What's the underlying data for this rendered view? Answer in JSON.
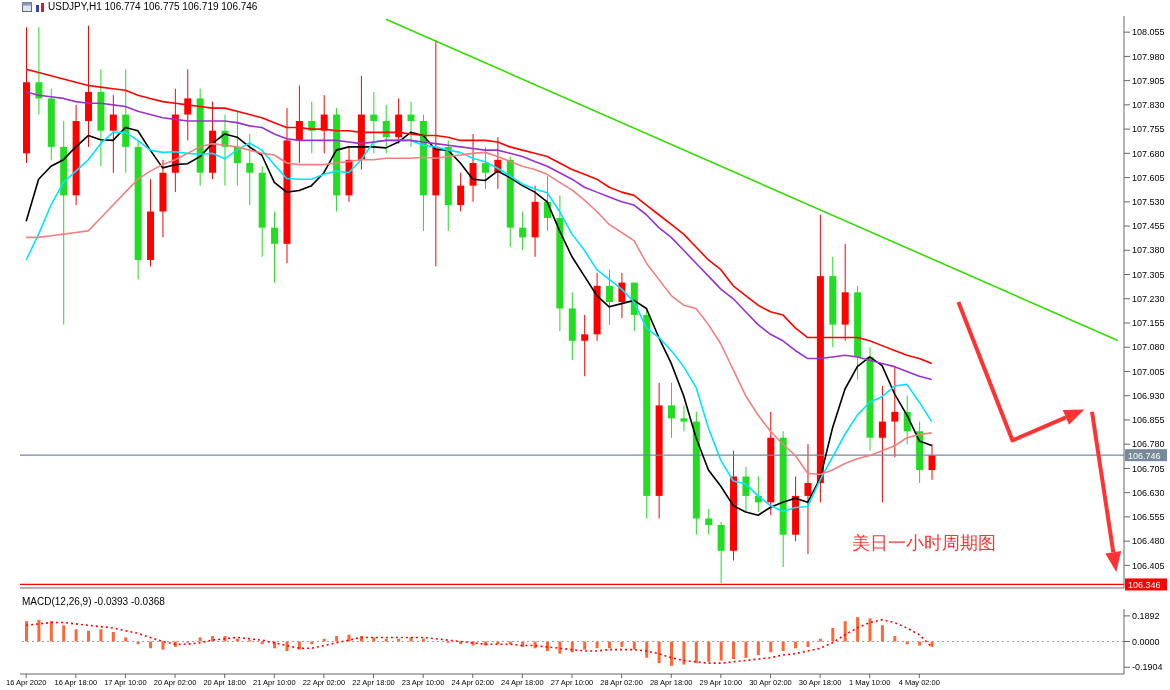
{
  "chart_data": [
    {
      "type": "candlestick",
      "title": "USDJPY,H1 106.774 106.775 106.719 106.746",
      "categories": [
        null,
        null,
        null,
        null,
        null,
        null,
        null,
        null,
        null,
        null,
        null,
        null,
        null,
        null,
        null,
        null,
        null,
        null,
        null,
        null,
        null,
        null,
        null,
        null,
        null,
        null,
        null,
        null,
        null,
        null,
        null,
        null,
        null,
        null,
        null,
        null,
        null,
        null,
        null,
        null,
        null,
        null,
        null,
        null,
        null,
        null,
        null,
        null,
        null,
        null,
        null,
        null,
        null,
        null,
        null,
        null,
        null,
        null,
        null,
        null,
        null,
        null,
        null,
        null,
        null,
        null,
        null,
        null,
        null,
        null,
        null,
        null,
        null,
        null,
        null,
        null,
        null,
        null,
        null,
        null,
        null,
        null,
        null,
        null,
        null,
        null,
        null,
        null,
        null
      ],
      "ohlc": [
        [
          107.68,
          108.07,
          107.65,
          107.9
        ],
        [
          107.9,
          108.07,
          107.8,
          107.85
        ],
        [
          107.85,
          107.88,
          107.66,
          107.7
        ],
        [
          107.7,
          107.78,
          107.15,
          107.55
        ],
        [
          107.55,
          107.83,
          107.52,
          107.78
        ],
        [
          107.78,
          108.075,
          107.7,
          107.87
        ],
        [
          107.87,
          107.94,
          107.64,
          107.75
        ],
        [
          107.75,
          107.86,
          107.62,
          107.8
        ],
        [
          107.8,
          107.94,
          107.62,
          107.7
        ],
        [
          107.7,
          107.72,
          107.29,
          107.35
        ],
        [
          107.35,
          107.6,
          107.33,
          107.5
        ],
        [
          107.5,
          107.66,
          107.42,
          107.62
        ],
        [
          107.62,
          107.88,
          107.56,
          107.8
        ],
        [
          107.8,
          107.94,
          107.72,
          107.85
        ],
        [
          107.85,
          107.88,
          107.58,
          107.62
        ],
        [
          107.62,
          107.84,
          107.6,
          107.75
        ],
        [
          107.75,
          107.8,
          107.58,
          107.7
        ],
        [
          107.7,
          107.81,
          107.58,
          107.65
        ],
        [
          107.65,
          107.74,
          107.52,
          107.62
        ],
        [
          107.62,
          107.64,
          107.36,
          107.45
        ],
        [
          107.45,
          107.5,
          107.28,
          107.4
        ],
        [
          107.4,
          107.82,
          107.34,
          107.72
        ],
        [
          107.72,
          107.89,
          107.65,
          107.78
        ],
        [
          107.78,
          107.84,
          107.68,
          107.75
        ],
        [
          107.75,
          107.86,
          107.68,
          107.8
        ],
        [
          107.8,
          107.82,
          107.5,
          107.55
        ],
        [
          107.55,
          107.7,
          107.53,
          107.66
        ],
        [
          107.66,
          107.92,
          107.63,
          107.8
        ],
        [
          107.8,
          107.87,
          107.68,
          107.78
        ],
        [
          107.78,
          107.83,
          107.68,
          107.73
        ],
        [
          107.73,
          107.85,
          107.71,
          107.8
        ],
        [
          107.8,
          107.84,
          107.7,
          107.78
        ],
        [
          107.78,
          107.8,
          107.44,
          107.55
        ],
        [
          107.55,
          108.03,
          107.33,
          107.7
        ],
        [
          107.7,
          107.72,
          107.44,
          107.52
        ],
        [
          107.52,
          107.62,
          107.5,
          107.58
        ],
        [
          107.58,
          107.74,
          107.53,
          107.65
        ],
        [
          107.65,
          107.7,
          107.57,
          107.62
        ],
        [
          107.62,
          107.73,
          107.57,
          107.66
        ],
        [
          107.66,
          107.67,
          107.39,
          107.45
        ],
        [
          107.45,
          107.5,
          107.38,
          107.42
        ],
        [
          107.42,
          107.58,
          107.36,
          107.53
        ],
        [
          107.53,
          107.61,
          107.44,
          107.48
        ],
        [
          107.48,
          107.55,
          107.13,
          107.2
        ],
        [
          107.2,
          107.25,
          107.04,
          107.1
        ],
        [
          107.1,
          107.18,
          106.99,
          107.12
        ],
        [
          107.12,
          107.31,
          107.1,
          107.27
        ],
        [
          107.27,
          107.32,
          107.15,
          107.22
        ],
        [
          107.22,
          107.31,
          107.17,
          107.28
        ],
        [
          107.28,
          107.28,
          107.13,
          107.18
        ],
        [
          107.18,
          107.2,
          106.55,
          106.62
        ],
        [
          106.62,
          106.97,
          106.55,
          106.9
        ],
        [
          106.9,
          106.97,
          106.8,
          106.86
        ],
        [
          106.86,
          106.9,
          106.82,
          106.85
        ],
        [
          106.85,
          106.88,
          106.5,
          106.55
        ],
        [
          106.55,
          106.58,
          106.5,
          106.53
        ],
        [
          106.53,
          106.54,
          106.35,
          106.45
        ],
        [
          106.45,
          106.76,
          106.42,
          106.68
        ],
        [
          106.68,
          106.71,
          106.57,
          106.62
        ],
        [
          106.62,
          106.68,
          106.57,
          106.6
        ],
        [
          106.6,
          106.88,
          106.56,
          106.8
        ],
        [
          106.8,
          106.82,
          106.4,
          106.5
        ],
        [
          106.5,
          106.68,
          106.48,
          106.62
        ],
        [
          106.62,
          106.78,
          106.44,
          106.66
        ],
        [
          106.66,
          107.49,
          106.6,
          107.3
        ],
        [
          107.3,
          107.36,
          107.08,
          107.15
        ],
        [
          107.15,
          107.4,
          107.1,
          107.25
        ],
        [
          107.25,
          107.27,
          106.98,
          107.05
        ],
        [
          107.05,
          107.08,
          106.76,
          106.8
        ],
        [
          106.8,
          106.96,
          106.6,
          106.85
        ],
        [
          106.85,
          107.02,
          106.74,
          106.88
        ],
        [
          106.88,
          106.93,
          106.78,
          106.82
        ],
        [
          106.82,
          106.85,
          106.66,
          106.7
        ],
        [
          106.7,
          106.78,
          106.67,
          106.746
        ],
        null,
        null,
        null,
        null,
        null,
        null,
        null,
        null,
        null,
        null,
        null,
        null,
        null,
        null,
        null
      ],
      "colors": [
        "#ff0000",
        "#22dd22",
        "#22dd22",
        "#22dd22",
        "#ff0000",
        "#ff0000",
        "#22dd22",
        "#ff0000",
        "#22dd22",
        "#22dd22",
        "#ff0000",
        "#ff0000",
        "#ff0000",
        "#ff0000",
        "#22dd22",
        "#ff0000",
        "#22dd22",
        "#22dd22",
        "#22dd22",
        "#22dd22",
        "#22dd22",
        "#ff0000",
        "#ff0000",
        "#22dd22",
        "#ff0000",
        "#22dd22",
        "#ff0000",
        "#ff0000",
        "#22dd22",
        "#22dd22",
        "#ff0000",
        "#22dd22",
        "#22dd22",
        "#ff0000",
        "#22dd22",
        "#ff0000",
        "#ff0000",
        "#22dd22",
        "#ff0000",
        "#22dd22",
        "#22dd22",
        "#ff0000",
        "#22dd22",
        "#22dd22",
        "#22dd22",
        "#ff0000",
        "#ff0000",
        "#22dd22",
        "#ff0000",
        "#22dd22",
        "#22dd22",
        "#ff0000",
        "#22dd22",
        "#22dd22",
        "#22dd22",
        "#22dd22",
        "#22dd22",
        "#ff0000",
        "#22dd22",
        "#22dd22",
        "#ff0000",
        "#22dd22",
        "#ff0000",
        "#ff0000",
        "#ff0000",
        "#22dd22",
        "#ff0000",
        "#22dd22",
        "#22dd22",
        "#ff0000",
        "#ff0000",
        "#22dd22",
        "#22dd22",
        "#ff0000",
        null,
        null,
        null,
        null,
        null,
        null,
        null,
        null,
        null,
        null,
        null,
        null,
        null,
        null,
        null
      ],
      "series": [
        {
          "type": "line",
          "color": "#000000",
          "values": [
            107.47,
            107.6,
            107.64,
            107.66,
            107.7,
            107.735,
            107.722,
            107.72,
            107.76,
            107.75,
            107.69,
            107.635,
            107.645,
            107.648,
            107.67,
            107.71,
            107.74,
            107.73,
            107.7,
            107.674,
            107.59,
            107.56,
            107.565,
            107.58,
            107.62,
            107.69,
            107.7,
            107.7,
            107.7,
            107.697,
            107.715,
            107.745,
            107.735,
            107.692,
            107.69,
            107.65,
            107.6,
            107.596,
            107.625,
            107.605,
            107.58,
            107.56,
            107.53,
            107.44,
            107.36,
            107.3,
            107.24,
            107.205,
            107.215,
            107.225,
            107.2,
            107.11,
            107.03,
            106.93,
            106.8,
            106.7,
            106.65,
            106.59,
            106.57,
            106.56,
            106.585,
            106.6,
            106.613,
            106.6,
            106.674,
            106.83,
            106.95,
            107.02,
            107.05,
            107.023,
            106.936,
            106.87,
            106.79,
            106.776,
            null,
            null,
            null,
            null,
            null,
            null,
            null,
            null,
            null,
            null,
            null,
            null,
            null,
            null,
            null
          ]
        },
        {
          "type": "line",
          "color": "#00e5ff",
          "values": [
            107.35,
            107.43,
            107.52,
            107.59,
            107.625,
            107.66,
            107.71,
            107.745,
            107.745,
            107.72,
            107.69,
            107.683,
            107.685,
            107.68,
            107.677,
            107.68,
            107.663,
            107.69,
            107.712,
            107.69,
            107.645,
            107.602,
            107.6,
            107.6,
            107.615,
            107.625,
            107.62,
            107.66,
            107.715,
            107.72,
            107.72,
            107.72,
            107.705,
            107.7,
            107.69,
            107.683,
            107.665,
            107.654,
            107.634,
            107.61,
            107.585,
            107.57,
            107.558,
            107.5,
            107.43,
            107.38,
            107.32,
            107.29,
            107.26,
            107.22,
            107.14,
            107.11,
            107.07,
            107.02,
            106.956,
            106.83,
            106.73,
            106.666,
            106.657,
            106.62,
            106.59,
            106.572,
            106.584,
            106.587,
            106.67,
            106.74,
            106.81,
            106.87,
            106.91,
            106.927,
            106.96,
            106.965,
            106.91,
            106.85,
            null,
            null,
            null,
            null,
            null,
            null,
            null,
            null,
            null,
            null,
            null,
            null,
            null,
            null,
            null
          ]
        },
        {
          "type": "line",
          "color": "#f08080",
          "values": [
            107.42,
            107.42,
            107.425,
            107.43,
            107.435,
            107.44,
            107.48,
            107.52,
            107.56,
            107.6,
            107.625,
            107.645,
            107.66,
            107.68,
            107.7,
            107.71,
            107.705,
            107.7,
            107.69,
            107.68,
            107.675,
            107.65,
            107.645,
            107.645,
            107.645,
            107.65,
            107.655,
            107.66,
            107.66,
            107.665,
            107.665,
            107.665,
            107.668,
            107.665,
            107.67,
            107.675,
            107.68,
            107.683,
            107.67,
            107.655,
            107.64,
            107.63,
            107.615,
            107.59,
            107.567,
            107.535,
            107.5,
            107.46,
            107.435,
            107.41,
            107.34,
            107.29,
            107.24,
            107.21,
            107.2,
            107.15,
            107.09,
            107.01,
            106.93,
            106.87,
            106.82,
            106.78,
            106.745,
            106.69,
            106.686,
            106.7,
            106.72,
            106.735,
            106.745,
            106.76,
            106.775,
            106.8,
            106.81,
            106.815,
            null,
            null,
            null,
            null,
            null,
            null,
            null,
            null,
            null,
            null,
            null,
            null,
            null,
            null,
            null
          ]
        },
        {
          "type": "line",
          "color": "#9932cc",
          "values": [
            107.87,
            107.86,
            107.855,
            107.85,
            107.84,
            107.835,
            107.835,
            107.83,
            107.825,
            107.81,
            107.8,
            107.79,
            107.785,
            107.78,
            107.78,
            107.78,
            107.78,
            107.775,
            107.765,
            107.76,
            107.74,
            107.725,
            107.72,
            107.72,
            107.72,
            107.72,
            107.715,
            107.71,
            107.715,
            107.72,
            107.72,
            107.72,
            107.715,
            107.71,
            107.705,
            107.7,
            107.695,
            107.69,
            107.69,
            107.68,
            107.67,
            107.655,
            107.64,
            107.62,
            107.6,
            107.575,
            107.56,
            107.545,
            107.53,
            107.52,
            107.49,
            107.45,
            107.42,
            107.38,
            107.34,
            107.3,
            107.26,
            107.23,
            107.19,
            107.15,
            107.12,
            107.1,
            107.07,
            107.045,
            107.045,
            107.05,
            107.055,
            107.05,
            107.04,
            107.03,
            107.02,
            107.005,
            106.99,
            106.98,
            null,
            null,
            null,
            null,
            null,
            null,
            null,
            null,
            null,
            null,
            null,
            null,
            null,
            null,
            null
          ]
        },
        {
          "type": "line",
          "color": "#ff0000",
          "values": [
            107.94,
            107.93,
            107.92,
            107.91,
            107.9,
            107.89,
            107.885,
            107.88,
            107.875,
            107.86,
            107.85,
            107.84,
            107.835,
            107.83,
            107.825,
            107.82,
            107.82,
            107.81,
            107.8,
            107.79,
            107.775,
            107.76,
            107.76,
            107.755,
            107.755,
            107.75,
            107.75,
            107.745,
            107.745,
            107.745,
            107.745,
            107.74,
            107.735,
            107.735,
            107.73,
            107.72,
            107.72,
            107.72,
            107.715,
            107.7,
            107.69,
            107.68,
            107.67,
            107.65,
            107.63,
            107.615,
            107.6,
            107.575,
            107.56,
            107.55,
            107.52,
            107.49,
            107.46,
            107.43,
            107.39,
            107.35,
            107.32,
            107.27,
            107.24,
            107.21,
            107.19,
            107.18,
            107.14,
            107.11,
            107.11,
            107.11,
            107.11,
            107.11,
            107.1,
            107.085,
            107.07,
            107.055,
            107.045,
            107.03,
            null,
            null,
            null,
            null,
            null,
            null,
            null,
            null,
            null,
            null,
            null,
            null,
            null,
            null,
            null
          ]
        },
        {
          "type": "line",
          "color": "#33dd00",
          "values": [
            null,
            null,
            null,
            null,
            null,
            null,
            null,
            null,
            null,
            null,
            null,
            null,
            null,
            null,
            null,
            null,
            null,
            null,
            null,
            null,
            null,
            null,
            null,
            null,
            null,
            null,
            null,
            null,
            null,
            108.095,
            null,
            null,
            null,
            null,
            null,
            null,
            null,
            null,
            null,
            null,
            null,
            null,
            null,
            null,
            null,
            null,
            null,
            null,
            null,
            null,
            null,
            null,
            null,
            null,
            null,
            null,
            null,
            null,
            null,
            null,
            null,
            null,
            null,
            null,
            null,
            null,
            null,
            null,
            null,
            null,
            null,
            null,
            null,
            null,
            null,
            null,
            null,
            null,
            null,
            null,
            null,
            null,
            null,
            null,
            null,
            null,
            null,
            null,
            107.101
          ]
        }
      ],
      "ref_lines": [
        {
          "axis": "y",
          "value": 106.746,
          "label": "106.746",
          "color": "#778899"
        },
        {
          "axis": "y",
          "value": 106.346,
          "label": "106.346",
          "color": "#ff0000"
        }
      ],
      "annotations": [
        "美日一小时周期图"
      ],
      "ylim": [
        106.335,
        108.105
      ],
      "yticks": [
        108.055,
        {
          "value": 107.98,
          "label": "107.980"
        },
        107.905,
        {
          "value": 107.83,
          "label": "107.830"
        },
        107.755,
        {
          "value": 107.68,
          "label": "107.680"
        },
        107.605,
        {
          "value": 107.53,
          "label": "107.530"
        },
        107.455,
        {
          "value": 107.38,
          "label": "107.380"
        },
        107.305,
        {
          "value": 107.23,
          "label": "107.230"
        },
        107.155,
        {
          "value": 107.08,
          "label": "107.080"
        },
        107.005,
        {
          "value": 106.93,
          "label": "106.930"
        },
        106.855,
        {
          "value": 106.78,
          "label": "106.780"
        },
        106.705,
        {
          "value": 106.63,
          "label": "106.630"
        },
        106.555,
        {
          "value": 106.48,
          "label": "106.480"
        },
        106.405
      ],
      "tick_labels": "y"
    },
    {
      "type": "bar",
      "title": "MACD(12,26,9) -0.0393 -0.0368",
      "categories": [
        "16 Apr 2020",
        null,
        null,
        null,
        "16 Apr 18:00",
        null,
        null,
        null,
        "17 Apr 10:00",
        null,
        null,
        null,
        "20 Apr 02:00",
        null,
        null,
        null,
        "20 Apr 18:00",
        null,
        null,
        null,
        "21 Apr 10:00",
        null,
        null,
        null,
        "22 Apr 02:00",
        null,
        null,
        null,
        "22 Apr 18:00",
        null,
        null,
        null,
        "23 Apr 10:00",
        null,
        null,
        null,
        "24 Apr 02:00",
        null,
        null,
        null,
        "24 Apr 18:00",
        null,
        null,
        null,
        "27 Apr 10:00",
        null,
        null,
        null,
        "28 Apr 02:00",
        null,
        null,
        null,
        "28 Apr 18:00",
        null,
        null,
        null,
        "29 Apr 10:00",
        null,
        null,
        null,
        "30 Apr 02:00",
        null,
        null,
        null,
        "30 Apr 18:00",
        null,
        null,
        null,
        "1 May 10:00",
        null,
        null,
        null,
        "4 May 02:00",
        null,
        null,
        null,
        null,
        null,
        null,
        null,
        null,
        null,
        null,
        null,
        null,
        null,
        null,
        null,
        null
      ],
      "series": [
        {
          "type": "bar",
          "color": "#ff6633",
          "values": [
            0.15,
            0.16,
            0.15,
            0.12,
            0.09,
            0.08,
            0.09,
            0.07,
            0.03,
            -0.02,
            -0.05,
            -0.06,
            -0.04,
            -0.01,
            0.03,
            0.04,
            0.04,
            0.02,
            0.01,
            -0.02,
            -0.05,
            -0.07,
            -0.06,
            -0.02,
            0.02,
            0.04,
            0.05,
            0.04,
            0.03,
            0.02,
            0.02,
            0.03,
            0.02,
            0.0,
            -0.01,
            -0.02,
            -0.03,
            -0.03,
            -0.02,
            -0.02,
            -0.04,
            -0.05,
            -0.07,
            -0.09,
            -0.08,
            -0.06,
            -0.05,
            -0.05,
            -0.04,
            -0.06,
            -0.12,
            -0.16,
            -0.18,
            -0.17,
            -0.16,
            -0.15,
            -0.14,
            -0.13,
            -0.12,
            -0.1,
            -0.08,
            -0.07,
            -0.05,
            -0.04,
            0.02,
            0.1,
            0.15,
            0.18,
            0.17,
            0.12,
            0.04,
            -0.02,
            -0.03,
            -0.04,
            null,
            null,
            null,
            null,
            null,
            null,
            null,
            null,
            null,
            null,
            null,
            null,
            null,
            null,
            null
          ]
        },
        {
          "type": "line",
          "color": "#ff0000",
          "line_style": "dotted",
          "values": [
            0.12,
            0.13,
            0.14,
            0.14,
            0.13,
            0.12,
            0.11,
            0.1,
            0.08,
            0.06,
            0.03,
            0.0,
            -0.02,
            -0.02,
            -0.01,
            0.01,
            0.02,
            0.03,
            0.02,
            0.01,
            -0.01,
            -0.03,
            -0.05,
            -0.05,
            -0.03,
            -0.01,
            0.01,
            0.03,
            0.03,
            0.03,
            0.03,
            0.03,
            0.03,
            0.02,
            0.01,
            0.0,
            -0.01,
            -0.02,
            -0.02,
            -0.02,
            -0.03,
            -0.03,
            -0.04,
            -0.05,
            -0.06,
            -0.07,
            -0.07,
            -0.06,
            -0.06,
            -0.06,
            -0.07,
            -0.09,
            -0.12,
            -0.14,
            -0.15,
            -0.16,
            -0.16,
            -0.15,
            -0.14,
            -0.13,
            -0.12,
            -0.1,
            -0.09,
            -0.07,
            -0.05,
            -0.01,
            0.05,
            0.1,
            0.14,
            0.16,
            0.14,
            0.1,
            0.05,
            -0.04,
            null,
            null,
            null,
            null,
            null,
            null,
            null,
            null,
            null,
            null,
            null,
            null,
            null,
            null,
            null
          ]
        }
      ],
      "ref_lines": [
        {
          "axis": "y",
          "value": 0,
          "color": "#a0a0a0",
          "line_style": "dotted"
        }
      ],
      "ylim": [
        -0.24,
        0.24
      ],
      "yticks": [
        -0.1904,
        {
          "value": 0,
          "label": "0.0000"
        },
        0.1892
      ]
    }
  ]
}
